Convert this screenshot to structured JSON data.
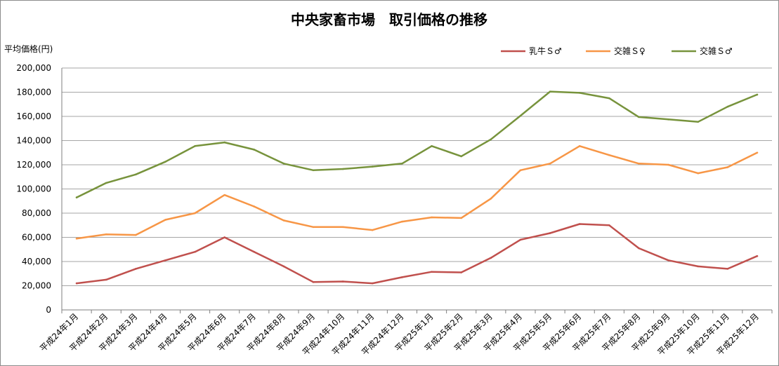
{
  "chart_data": {
    "type": "line",
    "title": "中央家畜市場　取引価格の推移",
    "ylabel": "平均価格(円)",
    "xlabel": "",
    "ylim": [
      0,
      200000
    ],
    "yticks": [
      0,
      20000,
      40000,
      60000,
      80000,
      100000,
      120000,
      140000,
      160000,
      180000,
      200000
    ],
    "ytick_labels": [
      "0",
      "20,000",
      "40,000",
      "60,000",
      "80,000",
      "100,000",
      "120,000",
      "140,000",
      "160,000",
      "180,000",
      "200,000"
    ],
    "grid": true,
    "legend_position": "top-right",
    "categories": [
      "平成24年1月",
      "平成24年2月",
      "平成24年3月",
      "平成24年4月",
      "平成24年5月",
      "平成24年6月",
      "平成24年7月",
      "平成24年8月",
      "平成24年9月",
      "平成24年10月",
      "平成24年11月",
      "平成24年12月",
      "平成25年1月",
      "平成25年2月",
      "平成25年3月",
      "平成25年4月",
      "平成25年5月",
      "平成25年6月",
      "平成25年7月",
      "平成25年8月",
      "平成25年9月",
      "平成25年10月",
      "平成25年11月",
      "平成25年12月"
    ],
    "series": [
      {
        "name": "乳牛Ｓ♂",
        "color": "#c0504d",
        "values": [
          22000,
          25000,
          34000,
          41000,
          48000,
          60000,
          48000,
          36000,
          23000,
          23500,
          22000,
          27000,
          31500,
          31000,
          43000,
          58000,
          63500,
          71000,
          70000,
          51000,
          41000,
          36000,
          34000,
          44500
        ]
      },
      {
        "name": "交雑Ｓ♀",
        "color": "#f79646",
        "values": [
          59000,
          62500,
          62000,
          74500,
          80000,
          95000,
          85500,
          74000,
          68500,
          68500,
          66000,
          73000,
          76500,
          76000,
          92000,
          115500,
          121000,
          135500,
          128000,
          121000,
          120000,
          113000,
          118000,
          130000
        ]
      },
      {
        "name": "交雑Ｓ♂",
        "color": "#77933c",
        "values": [
          93000,
          105000,
          112000,
          122500,
          135500,
          138500,
          132500,
          121000,
          115500,
          116500,
          118500,
          121000,
          135500,
          127000,
          141000,
          160500,
          180500,
          179500,
          175000,
          159500,
          157500,
          155500,
          168000,
          178000
        ]
      }
    ]
  }
}
